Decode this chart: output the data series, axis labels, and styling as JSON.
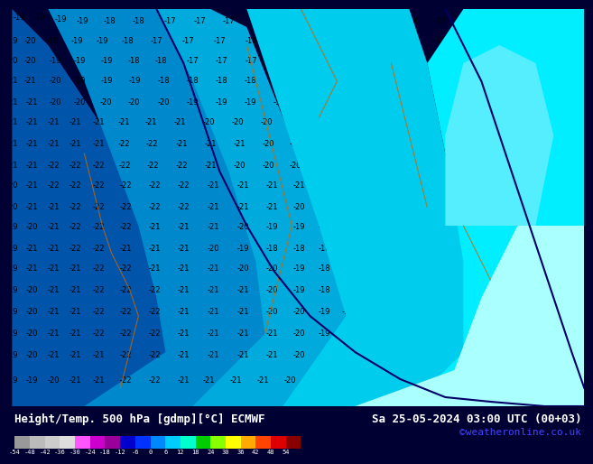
{
  "title_left": "Height/Temp. 500 hPa [gdmp][°C] ECMWF",
  "title_right": "Sa 25-05-2024 03:00 UTC (00+03)",
  "credit": "©weatheronline.co.uk",
  "colorbar_values": [
    -54,
    -48,
    -42,
    -36,
    -30,
    -24,
    -18,
    -12,
    -6,
    0,
    6,
    12,
    18,
    24,
    30,
    36,
    42,
    48,
    54
  ],
  "bg_color": "#00eeff",
  "bottom_bar_color": "#000033",
  "title_color": "#ffffff",
  "credit_color": "#4444ff",
  "title_fontsize": 9,
  "credit_fontsize": 8,
  "label_fontsize": 6,
  "cb_label_fontsize": 5,
  "cb_colors": [
    "#999999",
    "#bbbbbb",
    "#cccccc",
    "#dddddd",
    "#ff55ff",
    "#cc00cc",
    "#990099",
    "#0000cc",
    "#0033ff",
    "#0088ff",
    "#00ccff",
    "#00ffcc",
    "#00cc00",
    "#88ff00",
    "#ffff00",
    "#ffaa00",
    "#ff4400",
    "#dd0000",
    "#880000"
  ],
  "map_bg": "#00eeff",
  "region_colors": {
    "very_dark_blue": "#0044aa",
    "dark_blue": "#0066cc",
    "medium_blue": "#0099dd",
    "light_blue": "#00bbee",
    "cyan": "#00ddff",
    "bright_cyan": "#00eeff",
    "very_light_cyan": "#aaffff"
  }
}
